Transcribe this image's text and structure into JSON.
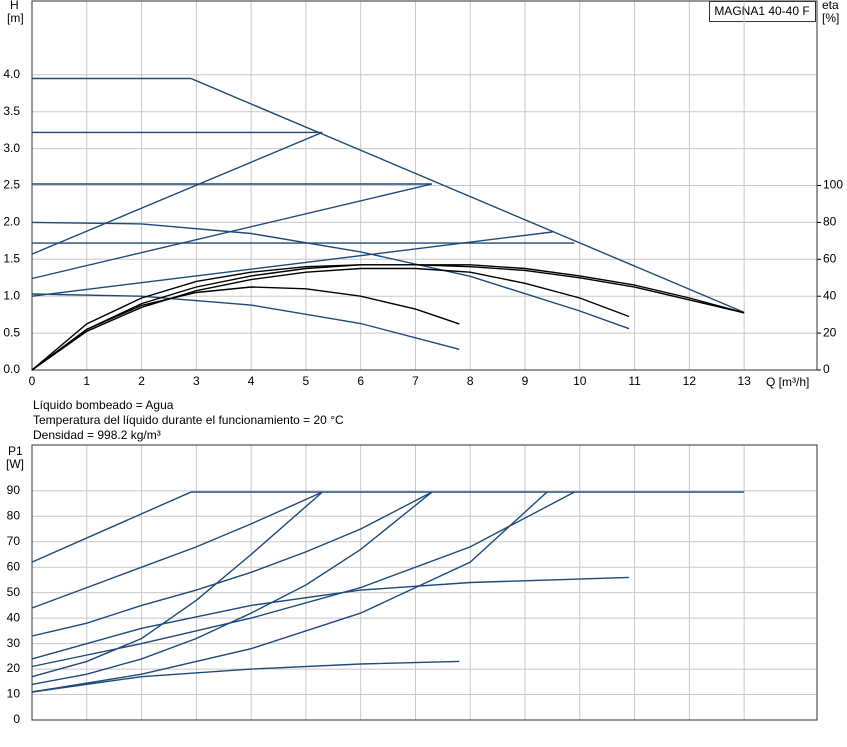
{
  "chart_data": [
    {
      "type": "line",
      "annotation": "MAGNA1 40-40 F",
      "ylabel": "H",
      "yunit": "[m]",
      "y2label": "eta",
      "y2unit": "[%]",
      "xlabel": "Q [m³/h]",
      "notes": [
        "Líquido bombeado = Agua",
        "Temperatura del líquido durante el funcionamiento = 20 °C",
        "Densidad = 998.2 kg/m³"
      ],
      "xlim": [
        0,
        14.33
      ],
      "xticks": [
        0,
        1,
        2,
        3,
        4,
        5,
        6,
        7,
        8,
        9,
        10,
        11,
        12,
        13
      ],
      "ylim": [
        0,
        5
      ],
      "yticks": [
        {
          "value": 0,
          "label": "0.0"
        },
        0.5,
        {
          "value": 1,
          "label": "1.0"
        },
        1.5,
        {
          "value": 2,
          "label": "2.0"
        },
        2.5,
        {
          "value": 3,
          "label": "3.0"
        },
        3.5,
        {
          "value": 4,
          "label": "4.0"
        }
      ],
      "y2lim": [
        0,
        200
      ],
      "y2ticks": [
        0,
        20,
        40,
        60,
        80,
        100
      ],
      "grid": true,
      "series": [
        {
          "color": "#1d4a7a",
          "x": [
            0,
            2.9,
            13
          ],
          "values": [
            3.95,
            3.95,
            0.78
          ]
        },
        {
          "color": "#1d4a7a",
          "x": [
            0,
            5.3
          ],
          "values": [
            3.22,
            3.22
          ]
        },
        {
          "color": "#1d4a7a",
          "x": [
            0,
            7.3
          ],
          "values": [
            2.52,
            2.52
          ]
        },
        {
          "color": "#1d4a7a",
          "x": [
            0,
            9.9
          ],
          "values": [
            1.72,
            1.72
          ]
        },
        {
          "color": "#1d4a7a",
          "x": [
            0,
            5.3
          ],
          "values": [
            1.57,
            3.22
          ]
        },
        {
          "color": "#1d4a7a",
          "x": [
            0,
            7.3
          ],
          "values": [
            1.24,
            2.52
          ]
        },
        {
          "color": "#1d4a7a",
          "x": [
            0,
            9.5
          ],
          "values": [
            1.0,
            1.87
          ]
        },
        {
          "color": "#1d4a7a",
          "x": [
            0,
            2,
            4,
            6,
            8,
            10,
            10.9
          ],
          "values": [
            2.0,
            1.98,
            1.85,
            1.6,
            1.27,
            0.8,
            0.56
          ]
        },
        {
          "color": "#1d4a7a",
          "x": [
            0,
            2,
            4,
            6,
            7.8
          ],
          "values": [
            1.03,
            1.0,
            0.88,
            0.63,
            0.28
          ]
        },
        {
          "color": "#000000",
          "axis": "y2",
          "x": [
            0,
            1,
            2,
            3,
            4,
            5,
            6,
            7,
            7.8
          ],
          "values": [
            0,
            22,
            35,
            42,
            45,
            44,
            40,
            33,
            25
          ]
        },
        {
          "color": "#000000",
          "axis": "y2",
          "x": [
            0,
            1,
            2,
            3,
            4,
            5,
            6,
            7,
            8,
            9,
            10,
            10.9
          ],
          "values": [
            0,
            21,
            34,
            43,
            49,
            53,
            55,
            55,
            53,
            47,
            39,
            29
          ]
        },
        {
          "color": "#000000",
          "axis": "y2",
          "x": [
            0,
            1,
            2,
            3,
            4,
            5,
            6,
            7,
            8,
            9,
            10,
            11,
            12,
            13
          ],
          "values": [
            0,
            22,
            36,
            45,
            51,
            55,
            57,
            57,
            57,
            55,
            51,
            46,
            39,
            31
          ]
        },
        {
          "color": "#000000",
          "axis": "y2",
          "x": [
            0,
            1,
            2,
            3,
            4,
            5,
            6,
            7,
            8,
            9,
            10,
            11,
            12,
            13
          ],
          "values": [
            0,
            25,
            39,
            48,
            53,
            56,
            57,
            57,
            56,
            54,
            50,
            45,
            38,
            31
          ]
        }
      ]
    },
    {
      "type": "line",
      "ylabel": "P1",
      "yunit": "[W]",
      "xlim": [
        0,
        14.33
      ],
      "ylim": [
        0,
        108
      ],
      "yticks": [
        0,
        10,
        20,
        30,
        40,
        50,
        60,
        70,
        80,
        90
      ],
      "grid": true,
      "series": [
        {
          "color": "#1d4a7a",
          "x": [
            0,
            2.9,
            13
          ],
          "values": [
            62,
            89.5,
            89.5
          ]
        },
        {
          "color": "#1d4a7a",
          "x": [
            0,
            1,
            2,
            3,
            4,
            5.3
          ],
          "values": [
            44,
            52,
            60,
            68,
            77,
            89.5
          ]
        },
        {
          "color": "#1d4a7a",
          "x": [
            0,
            1,
            2,
            3,
            4,
            5.3
          ],
          "values": [
            17,
            23,
            32,
            47,
            65,
            89.5
          ]
        },
        {
          "color": "#1d4a7a",
          "x": [
            0,
            1,
            2,
            3,
            4,
            5,
            6,
            7.3
          ],
          "values": [
            33,
            38,
            45,
            51,
            58,
            66,
            75,
            89.5
          ]
        },
        {
          "color": "#1d4a7a",
          "x": [
            0,
            1,
            2,
            3,
            4,
            5,
            6,
            7.3
          ],
          "values": [
            14,
            18,
            24,
            32,
            42,
            53,
            67,
            89.5
          ]
        },
        {
          "color": "#1d4a7a",
          "x": [
            0,
            2,
            4,
            6,
            8,
            9.9
          ],
          "values": [
            21,
            30,
            40,
            52,
            68,
            89.5
          ]
        },
        {
          "color": "#1d4a7a",
          "x": [
            0,
            2,
            4,
            6,
            8,
            9.4
          ],
          "values": [
            11,
            18,
            28,
            42,
            62,
            89.5
          ]
        },
        {
          "color": "#1d4a7a",
          "x": [
            0,
            2,
            4,
            6,
            8,
            10.9
          ],
          "values": [
            24,
            36,
            45,
            51,
            54,
            56
          ]
        },
        {
          "color": "#1d4a7a",
          "x": [
            0,
            2,
            4,
            6,
            7.8
          ],
          "values": [
            11,
            17,
            20,
            22,
            23
          ]
        }
      ]
    }
  ]
}
